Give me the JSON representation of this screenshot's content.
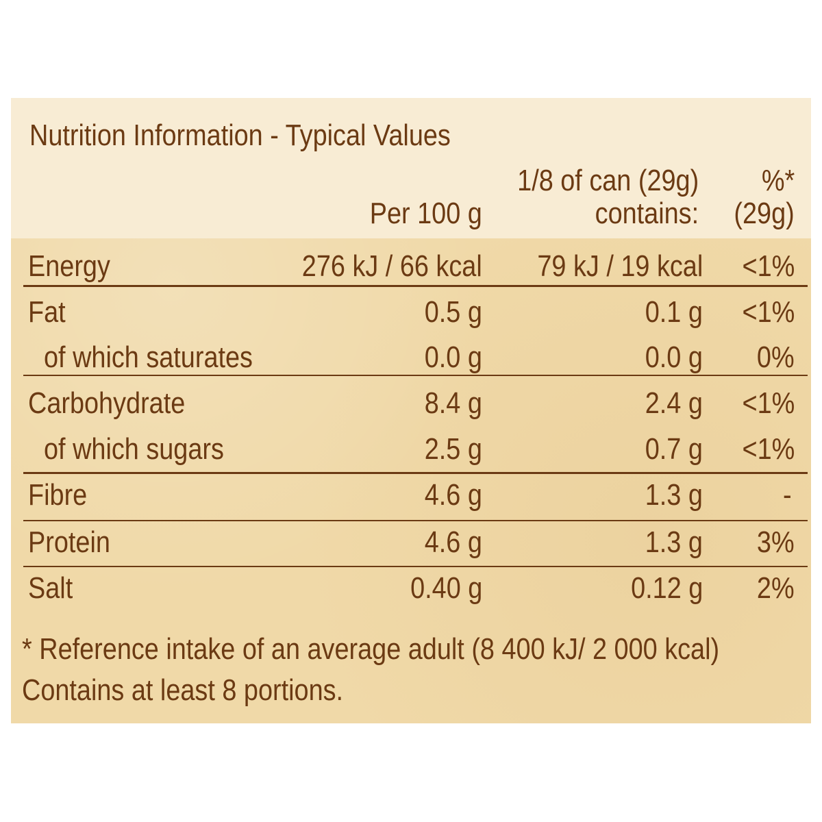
{
  "colors": {
    "panel": "#f0d9a8",
    "header": "#f8ecd4",
    "text": "#6b3a13"
  },
  "title": "Nutrition Information - Typical Values",
  "columns": {
    "per100_label": "Per 100 g",
    "portion_line1": "1/8 of can (29g)",
    "portion_line2": "contains:",
    "percent_line1": "%*",
    "percent_line2": "(29g)"
  },
  "rows": [
    {
      "label": "Energy",
      "per100": "276 kJ / 66 kcal",
      "portion": "79 kJ / 19 kcal",
      "ri": "<1%"
    },
    {
      "label": "Fat",
      "per100": "0.5 g",
      "portion": "0.1 g",
      "ri": "<1%"
    },
    {
      "label": "of which saturates",
      "per100": "0.0 g",
      "portion": "0.0 g",
      "ri": "0%"
    },
    {
      "label": "Carbohydrate",
      "per100": "8.4 g",
      "portion": "2.4 g",
      "ri": "<1%"
    },
    {
      "label": "of which sugars",
      "per100": "2.5 g",
      "portion": "0.7 g",
      "ri": "<1%"
    },
    {
      "label": "Fibre",
      "per100": "4.6 g",
      "portion": "1.3 g",
      "ri": "-"
    },
    {
      "label": "Protein",
      "per100": "4.6 g",
      "portion": "1.3 g",
      "ri": "3%"
    },
    {
      "label": "Salt",
      "per100": "0.40 g",
      "portion": "0.12 g",
      "ri": "2%"
    }
  ],
  "footnotes": {
    "reference": "* Reference intake of an average adult (8 400 kJ/ 2 000 kcal)",
    "portions": "Contains at least 8 portions."
  }
}
